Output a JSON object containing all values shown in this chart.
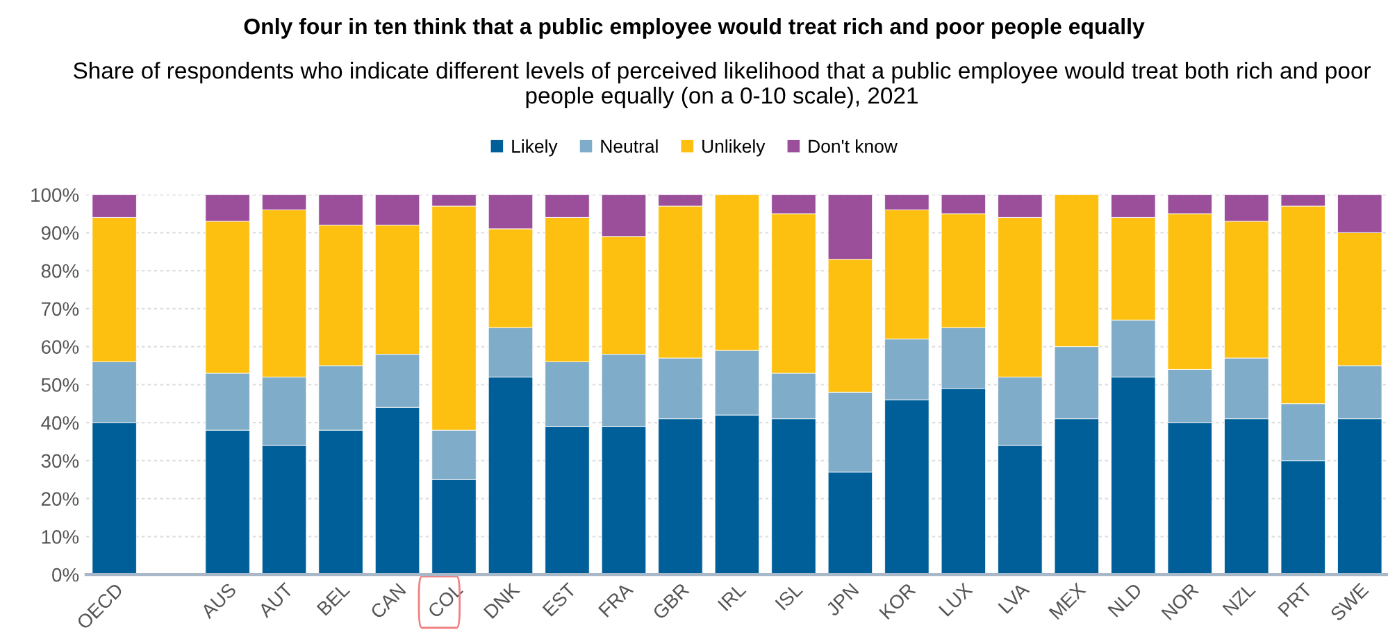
{
  "chart_data": {
    "type": "bar",
    "stacked": true,
    "title": "Only four in ten think that a public employee would treat rich and poor people equally",
    "subtitle": "Share of respondents who indicate different levels of perceived likelihood that a public employee would treat both rich and poor people equally (on a 0-10 scale), 2021",
    "categories": [
      "OECD",
      null,
      "AUS",
      "AUT",
      "BEL",
      "CAN",
      "COL",
      "DNK",
      "EST",
      "FRA",
      "GBR",
      "IRL",
      "ISL",
      "JPN",
      "KOR",
      "LUX",
      "LVA",
      "MEX",
      "NLD",
      "NOR",
      "NZL",
      "PRT",
      "SWE"
    ],
    "series": [
      {
        "name": "Likely",
        "color": "#005f99",
        "values": [
          40,
          null,
          38,
          34,
          38,
          44,
          25,
          52,
          39,
          39,
          41,
          42,
          41,
          27,
          46,
          49,
          34,
          41,
          52,
          40,
          41,
          30,
          41
        ]
      },
      {
        "name": "Neutral",
        "color": "#7facc8",
        "values": [
          16,
          null,
          15,
          18,
          17,
          14,
          13,
          13,
          17,
          19,
          16,
          17,
          12,
          21,
          16,
          16,
          18,
          19,
          15,
          14,
          16,
          15,
          14
        ]
      },
      {
        "name": "Unlikely",
        "color": "#fec010",
        "values": [
          38,
          null,
          40,
          44,
          37,
          34,
          59,
          26,
          38,
          31,
          40,
          41,
          42,
          35,
          34,
          30,
          42,
          40,
          27,
          41,
          36,
          52,
          35
        ]
      },
      {
        "name": "Don't know",
        "color": "#9b4f9b",
        "values": [
          6,
          null,
          7,
          4,
          8,
          8,
          3,
          9,
          6,
          11,
          3,
          0,
          5,
          17,
          4,
          5,
          6,
          0,
          6,
          5,
          7,
          3,
          10
        ]
      }
    ],
    "ylim": [
      0,
      100
    ],
    "yticks": [
      {
        "value": 0,
        "label": "0%"
      },
      {
        "value": 10,
        "label": "10%"
      },
      {
        "value": 20,
        "label": "20%"
      },
      {
        "value": 30,
        "label": "30%"
      },
      {
        "value": 40,
        "label": "40%"
      },
      {
        "value": 50,
        "label": "50%"
      },
      {
        "value": 60,
        "label": "60%"
      },
      {
        "value": 70,
        "label": "70%"
      },
      {
        "value": 80,
        "label": "80%"
      },
      {
        "value": 90,
        "label": "90%"
      },
      {
        "value": 100,
        "label": "100%"
      }
    ],
    "grid": "y",
    "legend": "top"
  }
}
